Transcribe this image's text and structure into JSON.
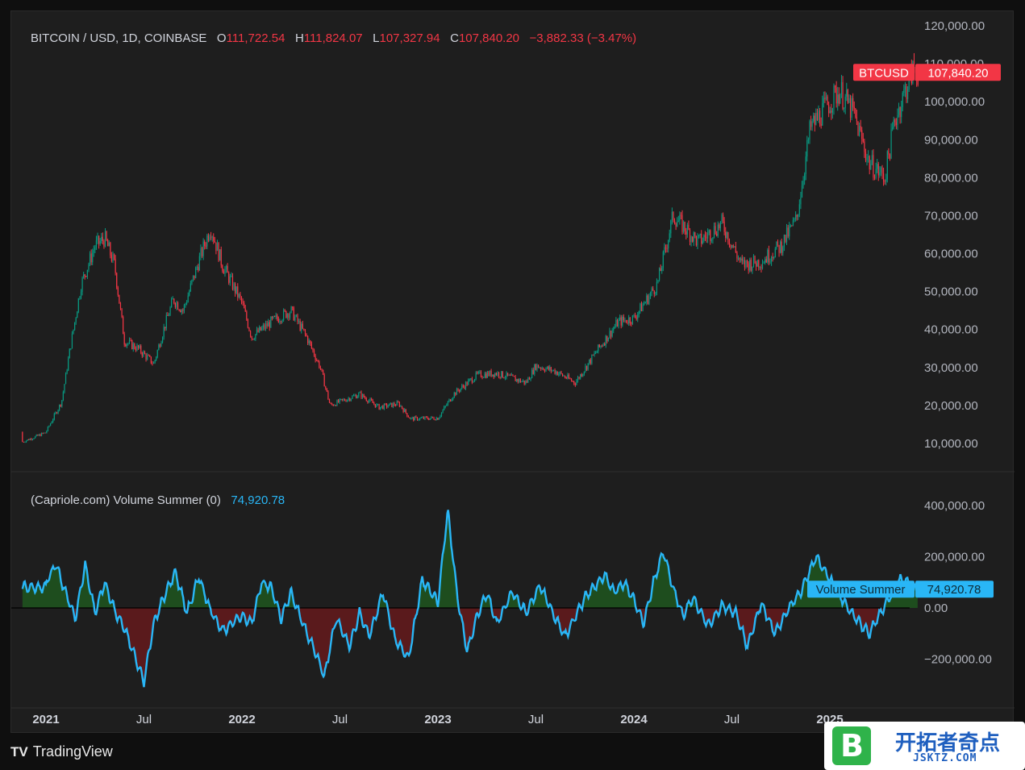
{
  "legend": {
    "symbol": "BITCOIN / USD, 1D, COINBASE",
    "open_label": "O",
    "open": "111,722.54",
    "high_label": "H",
    "high": "111,824.07",
    "low_label": "L",
    "low": "107,327.94",
    "close_label": "C",
    "close": "107,840.20",
    "change": "−3,882.33 (−3.47%)"
  },
  "indicator_legend": {
    "name": "(Capriole.com) Volume Summer (0)",
    "value": "74,920.78"
  },
  "badges": {
    "price_name": "BTCUSD",
    "price_value": "107,840.20",
    "ind_name": "Volume Summer",
    "ind_value": "74,920.78"
  },
  "footer": {
    "brand": "TradingView",
    "logo_text": "TV"
  },
  "watermark": {
    "logo": "B",
    "title": "开拓者奇点",
    "url": "JSKTZ.COM"
  },
  "colors": {
    "up": "#089981",
    "down": "#f23645",
    "indicator": "#29b6f6",
    "pos_fill": "#1e4d1e",
    "neg_fill": "#5a1a1c",
    "bg": "#1e1e1e"
  },
  "chart_data": [
    {
      "type": "line",
      "title": "BITCOIN / USD, 1D, COINBASE",
      "series": [
        {
          "name": "BTCUSD",
          "values": [
            [
              2021.0,
              13000
            ],
            [
              2021.08,
              21000
            ],
            [
              2021.12,
              34000
            ],
            [
              2021.18,
              52000
            ],
            [
              2021.25,
              62000
            ],
            [
              2021.3,
              64000
            ],
            [
              2021.35,
              57000
            ],
            [
              2021.4,
              37000
            ],
            [
              2021.47,
              35000
            ],
            [
              2021.55,
              31000
            ],
            [
              2021.6,
              40000
            ],
            [
              2021.65,
              48000
            ],
            [
              2021.7,
              45000
            ],
            [
              2021.78,
              58000
            ],
            [
              2021.84,
              67000
            ],
            [
              2021.9,
              57000
            ],
            [
              2022.0,
              47000
            ],
            [
              2022.05,
              38000
            ],
            [
              2022.15,
              42000
            ],
            [
              2022.25,
              45000
            ],
            [
              2022.33,
              38000
            ],
            [
              2022.4,
              30000
            ],
            [
              2022.45,
              20000
            ],
            [
              2022.5,
              21000
            ],
            [
              2022.6,
              23000
            ],
            [
              2022.7,
              19500
            ],
            [
              2022.8,
              20500
            ],
            [
              2022.86,
              16500
            ],
            [
              2023.0,
              16700
            ],
            [
              2023.08,
              23000
            ],
            [
              2023.2,
              28000
            ],
            [
              2023.3,
              28500
            ],
            [
              2023.45,
              26000
            ],
            [
              2023.5,
              30500
            ],
            [
              2023.6,
              29000
            ],
            [
              2023.7,
              26000
            ],
            [
              2023.82,
              35000
            ],
            [
              2023.92,
              42000
            ],
            [
              2024.0,
              43000
            ],
            [
              2024.12,
              52000
            ],
            [
              2024.2,
              70000
            ],
            [
              2024.33,
              63000
            ],
            [
              2024.45,
              68000
            ],
            [
              2024.55,
              57000
            ],
            [
              2024.65,
              58000
            ],
            [
              2024.75,
              62000
            ],
            [
              2024.83,
              69000
            ],
            [
              2024.9,
              93000
            ],
            [
              2024.97,
              98000
            ],
            [
              2025.05,
              103000
            ],
            [
              2025.12,
              97000
            ],
            [
              2025.2,
              84000
            ],
            [
              2025.28,
              80000
            ],
            [
              2025.33,
              95000
            ],
            [
              2025.42,
              108000
            ],
            [
              2025.45,
              107840
            ]
          ]
        }
      ],
      "ylim": [
        5000,
        125000
      ],
      "yticks": [
        "120,000.00",
        "110,000.00",
        "100,000.00",
        "90,000.00",
        "80,000.00",
        "70,000.00",
        "60,000.00",
        "50,000.00",
        "40,000.00",
        "30,000.00",
        "20,000.00",
        "10,000.00"
      ],
      "xticks": [
        "2021",
        "Jul",
        "2022",
        "Jul",
        "2023",
        "Jul",
        "2024",
        "Jul",
        "2025"
      ],
      "grid": false
    },
    {
      "type": "area",
      "title": "(Capriole.com) Volume Summer (0)",
      "series": [
        {
          "name": "Volume Summer",
          "values": [
            [
              2021.0,
              100000
            ],
            [
              2021.05,
              170000
            ],
            [
              2021.1,
              60000
            ],
            [
              2021.15,
              -40000
            ],
            [
              2021.2,
              170000
            ],
            [
              2021.25,
              -20000
            ],
            [
              2021.3,
              100000
            ],
            [
              2021.35,
              -10000
            ],
            [
              2021.4,
              -80000
            ],
            [
              2021.45,
              -180000
            ],
            [
              2021.5,
              -290000
            ],
            [
              2021.55,
              -60000
            ],
            [
              2021.6,
              40000
            ],
            [
              2021.66,
              140000
            ],
            [
              2021.72,
              -20000
            ],
            [
              2021.78,
              120000
            ],
            [
              2021.84,
              -10000
            ],
            [
              2021.9,
              -90000
            ],
            [
              2022.0,
              -30000
            ],
            [
              2022.05,
              -60000
            ],
            [
              2022.1,
              100000
            ],
            [
              2022.15,
              80000
            ],
            [
              2022.2,
              -40000
            ],
            [
              2022.25,
              60000
            ],
            [
              2022.32,
              -80000
            ],
            [
              2022.38,
              -180000
            ],
            [
              2022.42,
              -270000
            ],
            [
              2022.48,
              -40000
            ],
            [
              2022.55,
              -150000
            ],
            [
              2022.6,
              -20000
            ],
            [
              2022.65,
              -110000
            ],
            [
              2022.72,
              60000
            ],
            [
              2022.78,
              -120000
            ],
            [
              2022.85,
              -200000
            ],
            [
              2022.92,
              110000
            ],
            [
              2023.0,
              20000
            ],
            [
              2023.05,
              380000
            ],
            [
              2023.1,
              40000
            ],
            [
              2023.15,
              -170000
            ],
            [
              2023.2,
              -30000
            ],
            [
              2023.25,
              60000
            ],
            [
              2023.3,
              -60000
            ],
            [
              2023.38,
              60000
            ],
            [
              2023.45,
              -20000
            ],
            [
              2023.52,
              90000
            ],
            [
              2023.6,
              -40000
            ],
            [
              2023.65,
              -110000
            ],
            [
              2023.75,
              40000
            ],
            [
              2023.85,
              130000
            ],
            [
              2023.9,
              60000
            ],
            [
              2023.95,
              100000
            ],
            [
              2024.0,
              30000
            ],
            [
              2024.05,
              -60000
            ],
            [
              2024.1,
              100000
            ],
            [
              2024.15,
              220000
            ],
            [
              2024.2,
              80000
            ],
            [
              2024.25,
              -30000
            ],
            [
              2024.3,
              40000
            ],
            [
              2024.38,
              -70000
            ],
            [
              2024.45,
              10000
            ],
            [
              2024.52,
              -20000
            ],
            [
              2024.58,
              -150000
            ],
            [
              2024.65,
              20000
            ],
            [
              2024.72,
              -100000
            ],
            [
              2024.8,
              10000
            ],
            [
              2024.85,
              60000
            ],
            [
              2024.93,
              200000
            ],
            [
              2025.0,
              110000
            ],
            [
              2025.05,
              50000
            ],
            [
              2025.12,
              -30000
            ],
            [
              2025.2,
              -100000
            ],
            [
              2025.28,
              10000
            ],
            [
              2025.36,
              110000
            ],
            [
              2025.42,
              90000
            ],
            [
              2025.45,
              74920
            ]
          ]
        }
      ],
      "ylim": [
        -320000,
        450000
      ],
      "yticks": [
        "400,000.00",
        "200,000.00",
        "0.00",
        "−200,000.00"
      ],
      "xticks": [
        "2021",
        "Jul",
        "2022",
        "Jul",
        "2023",
        "Jul",
        "2024",
        "Jul",
        "2025"
      ]
    }
  ]
}
